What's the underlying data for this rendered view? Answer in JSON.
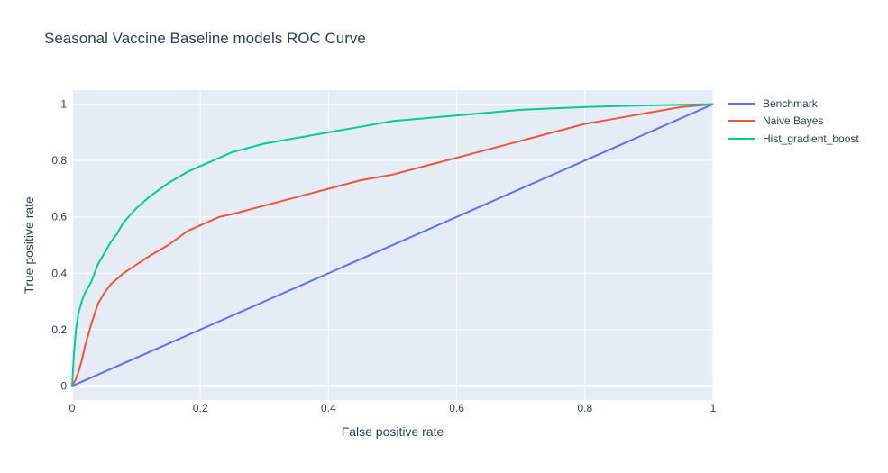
{
  "chart_data": {
    "type": "line",
    "title": "Seasonal Vaccine Baseline models ROC Curve",
    "xlabel": "False positive rate",
    "ylabel": "True positive rate",
    "xlim": [
      0,
      1
    ],
    "ylim": [
      -0.05,
      1.05
    ],
    "x_ticks": [
      "0",
      "0.2",
      "0.4",
      "0.6",
      "0.8",
      "1"
    ],
    "y_ticks": [
      "0",
      "0.2",
      "0.4",
      "0.6",
      "0.8",
      "1"
    ],
    "grid": true,
    "legend_position": "top-right",
    "series": [
      {
        "name": "Benchmark",
        "color": "#636efa",
        "x": [
          0,
          1
        ],
        "y": [
          0,
          1
        ]
      },
      {
        "name": "Naive Bayes",
        "color": "#ef553b",
        "x": [
          0,
          0.005,
          0.01,
          0.015,
          0.02,
          0.03,
          0.04,
          0.05,
          0.06,
          0.08,
          0.1,
          0.12,
          0.15,
          0.18,
          0.2,
          0.23,
          0.25,
          0.3,
          0.35,
          0.4,
          0.45,
          0.5,
          0.55,
          0.6,
          0.65,
          0.7,
          0.75,
          0.8,
          0.85,
          0.9,
          0.95,
          1.0
        ],
        "y": [
          0,
          0.02,
          0.05,
          0.09,
          0.14,
          0.22,
          0.29,
          0.33,
          0.36,
          0.4,
          0.43,
          0.46,
          0.5,
          0.55,
          0.57,
          0.6,
          0.61,
          0.64,
          0.67,
          0.7,
          0.73,
          0.75,
          0.78,
          0.81,
          0.84,
          0.87,
          0.9,
          0.93,
          0.95,
          0.97,
          0.99,
          1.0
        ]
      },
      {
        "name": "Hist_gradient_boost",
        "color": "#00cc96",
        "x": [
          0,
          0.003,
          0.006,
          0.01,
          0.015,
          0.02,
          0.03,
          0.04,
          0.05,
          0.06,
          0.07,
          0.08,
          0.1,
          0.12,
          0.15,
          0.18,
          0.2,
          0.25,
          0.3,
          0.35,
          0.4,
          0.45,
          0.5,
          0.55,
          0.6,
          0.65,
          0.7,
          0.75,
          0.8,
          0.85,
          0.9,
          0.95,
          1.0
        ],
        "y": [
          0,
          0.12,
          0.2,
          0.26,
          0.3,
          0.33,
          0.37,
          0.43,
          0.47,
          0.51,
          0.54,
          0.58,
          0.63,
          0.67,
          0.72,
          0.76,
          0.78,
          0.83,
          0.86,
          0.88,
          0.9,
          0.92,
          0.94,
          0.95,
          0.96,
          0.97,
          0.98,
          0.985,
          0.99,
          0.993,
          0.996,
          0.998,
          1.0
        ]
      }
    ]
  }
}
